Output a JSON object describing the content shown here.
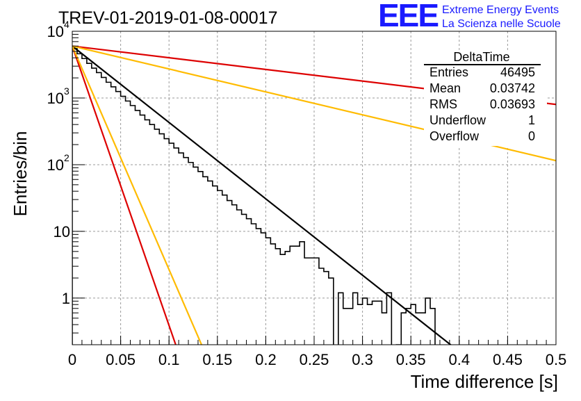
{
  "header": {
    "title": "TREV-01-2019-01-08-00017",
    "logo_text": "EEE",
    "logo_line1": "Extreme Energy Events",
    "logo_line2": "La Scienza nelle Scuole",
    "logo_color": "#1a1aff"
  },
  "stats": {
    "title": "DeltaTime",
    "rows": [
      {
        "label": "Entries",
        "value": "46495"
      },
      {
        "label": "Mean",
        "value": "0.03742"
      },
      {
        "label": "RMS",
        "value": "0.03693"
      },
      {
        "label": "Underflow",
        "value": "1"
      },
      {
        "label": "Overflow",
        "value": "0"
      }
    ]
  },
  "chart_data": {
    "type": "bar",
    "title": "TREV-01-2019-01-08-00017",
    "xlabel": "Time difference [s]",
    "ylabel": "Entries/bin",
    "xlim": [
      0,
      0.5
    ],
    "ylim": [
      0.2,
      10000
    ],
    "log_y": true,
    "grid": true,
    "x_ticks": [
      0,
      0.05,
      0.1,
      0.15,
      0.2,
      0.25,
      0.3,
      0.35,
      0.4,
      0.45,
      0.5
    ],
    "x_tick_labels": [
      "0",
      "0.05",
      "0.1",
      "0.15",
      "0.2",
      "0.25",
      "0.3",
      "0.35",
      "0.4",
      "0.45",
      "0.5"
    ],
    "y_ticks": [
      1,
      10,
      100,
      1000,
      10000
    ],
    "y_tick_labels": [
      {
        "base": "1",
        "exp": ""
      },
      {
        "base": "10",
        "exp": ""
      },
      {
        "base": "10",
        "exp": "2"
      },
      {
        "base": "10",
        "exp": "3"
      },
      {
        "base": "10",
        "exp": "4"
      }
    ],
    "histogram": {
      "bin_width": 0.005,
      "color": "#000000",
      "counts": [
        5500,
        4600,
        3900,
        3300,
        2800,
        2400,
        2030,
        1720,
        1470,
        1250,
        1060,
        900,
        770,
        650,
        555,
        470,
        400,
        340,
        290,
        245,
        210,
        178,
        150,
        128,
        108,
        92,
        79,
        66,
        57,
        48,
        41,
        35,
        29,
        25,
        21,
        18,
        15.5,
        13,
        11,
        9.5,
        8,
        6.5,
        5.5,
        4.5,
        5,
        6,
        6,
        7,
        4,
        4,
        4,
        2.8,
        2.5,
        2,
        0.15,
        1.2,
        0.7,
        0.7,
        1.2,
        0.8,
        1,
        0.8,
        0.9,
        0.9,
        0.6,
        1.2,
        0.15,
        0.2,
        0.6,
        0.7,
        0.8,
        0.6,
        0.6,
        1,
        0.7
      ]
    },
    "series": [
      {
        "color": "#000000",
        "x": [
          0,
          0.395
        ],
        "y": [
          6000,
          0.18
        ]
      },
      {
        "color": "#dd0000",
        "x": [
          0,
          0.5
        ],
        "y": [
          6000,
          800
        ]
      },
      {
        "color": "#dd0000",
        "x": [
          0,
          0.108
        ],
        "y": [
          6000,
          0.18
        ]
      },
      {
        "color": "#ffbb00",
        "x": [
          0,
          0.5
        ],
        "y": [
          6000,
          115
        ]
      },
      {
        "color": "#ffbb00",
        "x": [
          0,
          0.135
        ],
        "y": [
          6000,
          0.18
        ]
      }
    ]
  }
}
